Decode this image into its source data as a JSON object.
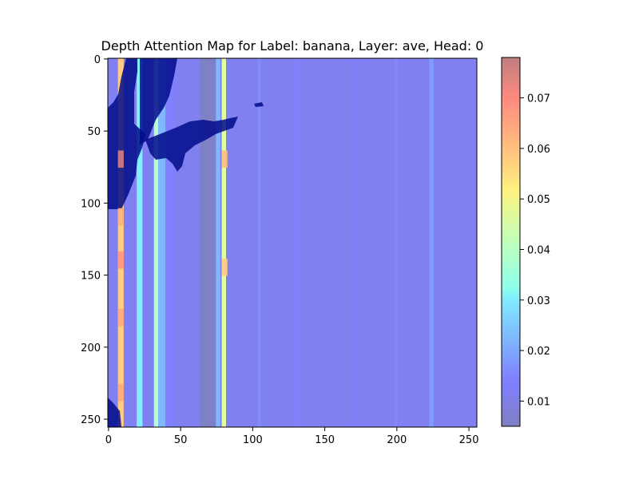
{
  "chart_data": {
    "type": "heatmap",
    "title": "Depth Attention Map for Label: banana, Layer: ave, Head: 0",
    "xlabel": "",
    "ylabel": "",
    "xlim": [
      0,
      255
    ],
    "ylim": [
      255,
      0
    ],
    "x_ticks": [
      "0",
      "50",
      "100",
      "150",
      "200",
      "250"
    ],
    "y_ticks": [
      "0",
      "50",
      "100",
      "150",
      "200",
      "250"
    ],
    "colorbar": {
      "range": [
        0.005,
        0.078
      ],
      "ticks": [
        "0.01",
        "0.02",
        "0.03",
        "0.04",
        "0.05",
        "0.06",
        "0.07"
      ],
      "colormap": "jet",
      "placement": "right"
    },
    "background_value": 0.012,
    "column_bands": [
      {
        "x0": 7,
        "x1": 11,
        "value": 0.058
      },
      {
        "x0": 20,
        "x1": 24,
        "value": 0.03
      },
      {
        "x0": 32,
        "x1": 35,
        "value": 0.04
      },
      {
        "x0": 35,
        "x1": 40,
        "value": 0.022
      },
      {
        "x0": 40,
        "x1": 47,
        "value": 0.014
      },
      {
        "x0": 64,
        "x1": 75,
        "value": 0.006
      },
      {
        "x0": 75,
        "x1": 78,
        "value": 0.022
      },
      {
        "x0": 79,
        "x1": 82,
        "value": 0.046
      },
      {
        "x0": 104,
        "x1": 106,
        "value": 0.016
      },
      {
        "x0": 128,
        "x1": 133,
        "value": 0.013
      },
      {
        "x0": 170,
        "x1": 176,
        "value": 0.013
      },
      {
        "x0": 199,
        "x1": 201,
        "value": 0.015
      },
      {
        "x0": 223,
        "x1": 226,
        "value": 0.018
      }
    ],
    "hotspots": [
      {
        "x": 9,
        "y": 70,
        "value": 0.075
      },
      {
        "x": 9,
        "y": 140,
        "value": 0.066
      },
      {
        "x": 9,
        "y": 110,
        "value": 0.062
      },
      {
        "x": 9,
        "y": 180,
        "value": 0.063
      },
      {
        "x": 9,
        "y": 232,
        "value": 0.063
      },
      {
        "x": 81,
        "y": 70,
        "value": 0.06
      },
      {
        "x": 81,
        "y": 145,
        "value": 0.058
      }
    ]
  }
}
